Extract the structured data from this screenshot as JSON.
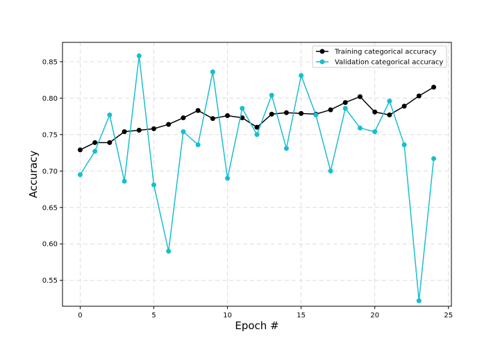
{
  "chart_data": {
    "type": "line",
    "xlabel": "Epoch #",
    "ylabel": "Accuracy",
    "xlim": [
      -1.2,
      25.2
    ],
    "ylim": [
      0.5145,
      0.8765
    ],
    "xticks": [
      0,
      5,
      10,
      15,
      20,
      25
    ],
    "yticks": [
      0.55,
      0.6,
      0.65,
      0.7,
      0.75,
      0.8,
      0.85
    ],
    "grid": true,
    "legend_position": "top-right",
    "x": [
      0,
      1,
      2,
      3,
      4,
      5,
      6,
      7,
      8,
      9,
      10,
      11,
      12,
      13,
      14,
      15,
      16,
      17,
      18,
      19,
      20,
      21,
      22,
      23,
      24
    ],
    "series": [
      {
        "name": "Training categorical accuracy",
        "color": "#000000",
        "values": [
          0.729,
          0.739,
          0.739,
          0.754,
          0.756,
          0.758,
          0.764,
          0.773,
          0.783,
          0.772,
          0.776,
          0.773,
          0.76,
          0.778,
          0.78,
          0.779,
          0.778,
          0.784,
          0.794,
          0.802,
          0.781,
          0.777,
          0.789,
          0.803,
          0.815
        ]
      },
      {
        "name": "Validation categorical accuracy",
        "color": "#17becf",
        "values": [
          0.695,
          0.727,
          0.777,
          0.686,
          0.858,
          0.681,
          0.59,
          0.754,
          0.736,
          0.836,
          0.69,
          0.786,
          0.75,
          0.804,
          0.731,
          0.831,
          0.777,
          0.7,
          0.786,
          0.759,
          0.754,
          0.796,
          0.736,
          0.522,
          0.717
        ]
      }
    ]
  }
}
